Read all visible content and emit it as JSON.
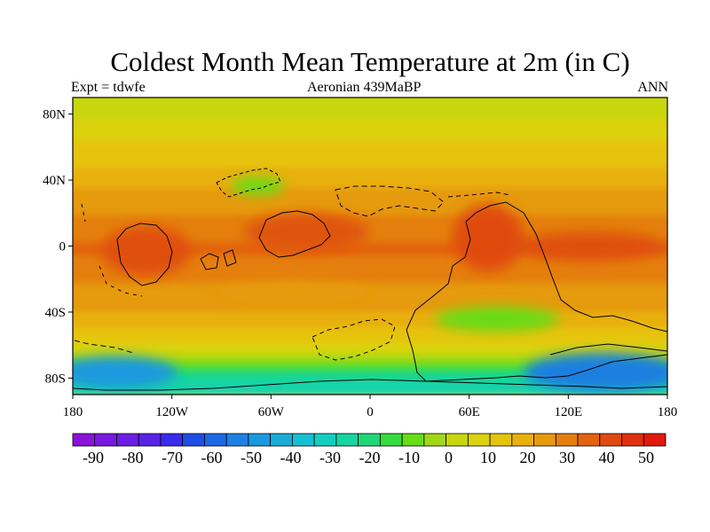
{
  "title": "Coldest Month Mean Temperature at 2m (in C)",
  "subtitle_left": "Expt = tdwfe",
  "subtitle_center": "Aeronian 439MaBP",
  "subtitle_right": "ANN",
  "lat_ticks": [
    "80N",
    "40N",
    "0",
    "40S",
    "80S"
  ],
  "lon_ticks": [
    "180",
    "120W",
    "60W",
    "0",
    "60E",
    "120E",
    "180"
  ],
  "colorbar": {
    "labels": [
      "-90",
      "-80",
      "-70",
      "-60",
      "-50",
      "-40",
      "-30",
      "-20",
      "-10",
      "0",
      "10",
      "20",
      "30",
      "40",
      "50"
    ],
    "colors": [
      "#8b12d9",
      "#7a18e0",
      "#6a1ee3",
      "#5823e6",
      "#3b2bec",
      "#1f4de8",
      "#1e68e6",
      "#1f80e2",
      "#1c98df",
      "#19acd9",
      "#16c0d2",
      "#14cfc0",
      "#16d5a0",
      "#1fd776",
      "#36dc40",
      "#66dd14",
      "#a0d815",
      "#c8d710",
      "#dcd10f",
      "#e6c40e",
      "#e8b00e",
      "#e69a0f",
      "#e47f10",
      "#e26310",
      "#e04a10",
      "#e0300f",
      "#e0180d"
    ]
  },
  "chart_data": {
    "type": "heatmap",
    "title": "Coldest Month Mean Temperature at 2m (in C)",
    "experiment": "tdwfe",
    "period": "Aeronian 439MaBP",
    "season": "ANN",
    "x_range": [
      -180,
      180
    ],
    "y_range": [
      -90,
      90
    ],
    "color_range": [
      -90,
      50
    ],
    "latitude_profile": [
      {
        "lat": 90,
        "temp": 0
      },
      {
        "lat": 80,
        "temp": 2
      },
      {
        "lat": 68,
        "temp": 8
      },
      {
        "lat": 55,
        "temp": 12
      },
      {
        "lat": 40,
        "temp": 19
      },
      {
        "lat": 25,
        "temp": 23
      },
      {
        "lat": 12,
        "temp": 28
      },
      {
        "lat": 0,
        "temp": 32
      },
      {
        "lat": -12,
        "temp": 30
      },
      {
        "lat": -25,
        "temp": 25
      },
      {
        "lat": -40,
        "temp": 20
      },
      {
        "lat": -52,
        "temp": 14
      },
      {
        "lat": -62,
        "temp": 8
      },
      {
        "lat": -72,
        "temp": -10
      },
      {
        "lat": -80,
        "temp": -25
      },
      {
        "lat": -90,
        "temp": -30
      }
    ],
    "hot_spots": [
      {
        "region": "equatorial continent near 160W",
        "temp": 38
      },
      {
        "region": "equatorial band 60W-20W",
        "temp": 35
      },
      {
        "region": "equatorial continent 40E-80E",
        "temp": 38
      },
      {
        "region": "equatorial band 90E-165E",
        "temp": 36
      }
    ],
    "cold_regions": [
      {
        "region": "south polar ocean 180W-20W",
        "temp": -30
      },
      {
        "region": "south polar continent 60E-180E",
        "temp": -30
      }
    ]
  }
}
